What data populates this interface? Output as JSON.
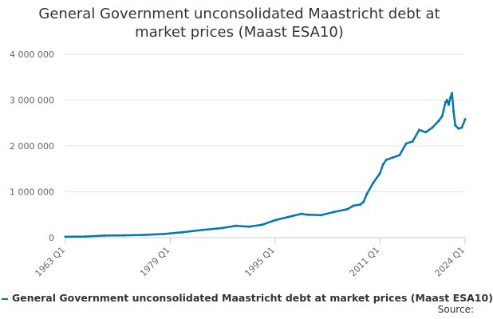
{
  "chart_data": {
    "type": "line",
    "title_lines": [
      "General Government unconsolidated Maastricht debt at",
      "market prices (Maast ESA10)"
    ],
    "y_ticks": [
      "0",
      "1 000 000",
      "2 000 000",
      "3 000 000",
      "4 000 000"
    ],
    "x_ticks": [
      "1963 Q1",
      "1979 Q1",
      "1995 Q1",
      "2011 Q1",
      "2024 Q1"
    ],
    "ylim": [
      0,
      4000000
    ],
    "grid": "horizontal",
    "legend_position": "bottom",
    "color": "#0077b3",
    "series": [
      {
        "name": "General Government unconsolidated Maastricht debt at market prices (Maast ESA10)",
        "x": [
          "1963 Q1",
          "1966 Q1",
          "1969 Q1",
          "1972 Q1",
          "1975 Q1",
          "1978 Q1",
          "1981 Q1",
          "1984 Q1",
          "1987 Q1",
          "1989 Q1",
          "1991 Q1",
          "1993 Q1",
          "1995 Q1",
          "1997 Q1",
          "1999 Q1",
          "2000 Q1",
          "2002 Q1",
          "2004 Q1",
          "2006 Q1",
          "2007 Q1",
          "2008 Q1",
          "2008 Q3",
          "2009 Q1",
          "2010 Q1",
          "2011 Q1",
          "2011 Q3",
          "2012 Q1",
          "2013 Q1",
          "2014 Q1",
          "2015 Q1",
          "2016 Q1",
          "2017 Q1",
          "2018 Q1",
          "2019 Q1",
          "2020 Q1",
          "2020 Q3",
          "2021 Q1",
          "2021 Q2",
          "2021 Q3",
          "2021 Q4",
          "2022 Q1",
          "2022 Q2",
          "2022 Q3",
          "2023 Q1",
          "2023 Q3",
          "2024 Q1"
        ],
        "values": [
          20000,
          25000,
          45000,
          50000,
          60000,
          80000,
          120000,
          170000,
          210000,
          260000,
          240000,
          280000,
          380000,
          450000,
          520000,
          500000,
          490000,
          560000,
          620000,
          700000,
          720000,
          780000,
          950000,
          1200000,
          1400000,
          1600000,
          1700000,
          1750000,
          1800000,
          2050000,
          2100000,
          2350000,
          2300000,
          2400000,
          2550000,
          2650000,
          2950000,
          3000000,
          2900000,
          3050000,
          3150000,
          2750000,
          2450000,
          2380000,
          2400000,
          2580000
        ]
      }
    ],
    "source_label": "Source:"
  }
}
